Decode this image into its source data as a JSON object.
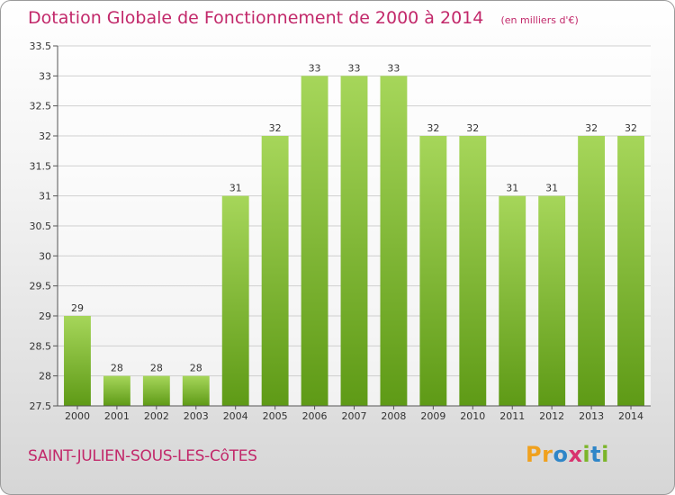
{
  "header": {
    "title": "Dotation Globale de Fonctionnement de 2000 à 2014",
    "unit": "(en milliers d'€)"
  },
  "footer": {
    "commune": "SAINT-JULIEN-SOUS-LES-CôTES",
    "logo_letters": [
      "P",
      "r",
      "o",
      "x",
      "i",
      "t",
      "i"
    ],
    "logo_colors": [
      "#f0a11e",
      "#f0a11e",
      "#2f86c8",
      "#d8326e",
      "#7cb52a",
      "#2f86c8",
      "#7cb52a"
    ]
  },
  "colors": {
    "bar_top": "#a6d65a",
    "bar_bottom": "#5e9a16",
    "title": "#c2286a",
    "grid": "#d0d0d0"
  },
  "chart_data": {
    "type": "bar",
    "categories": [
      "2000",
      "2001",
      "2002",
      "2003",
      "2004",
      "2005",
      "2006",
      "2007",
      "2008",
      "2009",
      "2010",
      "2011",
      "2012",
      "2013",
      "2014"
    ],
    "values": [
      29,
      28,
      28,
      28,
      31,
      32,
      33,
      33,
      33,
      32,
      32,
      31,
      31,
      32,
      32
    ],
    "ylim": [
      27.5,
      33.5
    ],
    "yticks": [
      "27.5",
      "28",
      "28.5",
      "29",
      "29.5",
      "30",
      "30.5",
      "31",
      "31.5",
      "32",
      "32.5",
      "33",
      "33.5"
    ],
    "title": "Dotation Globale de Fonctionnement de 2000 à 2014",
    "xlabel": "",
    "ylabel": "",
    "grid": true
  }
}
